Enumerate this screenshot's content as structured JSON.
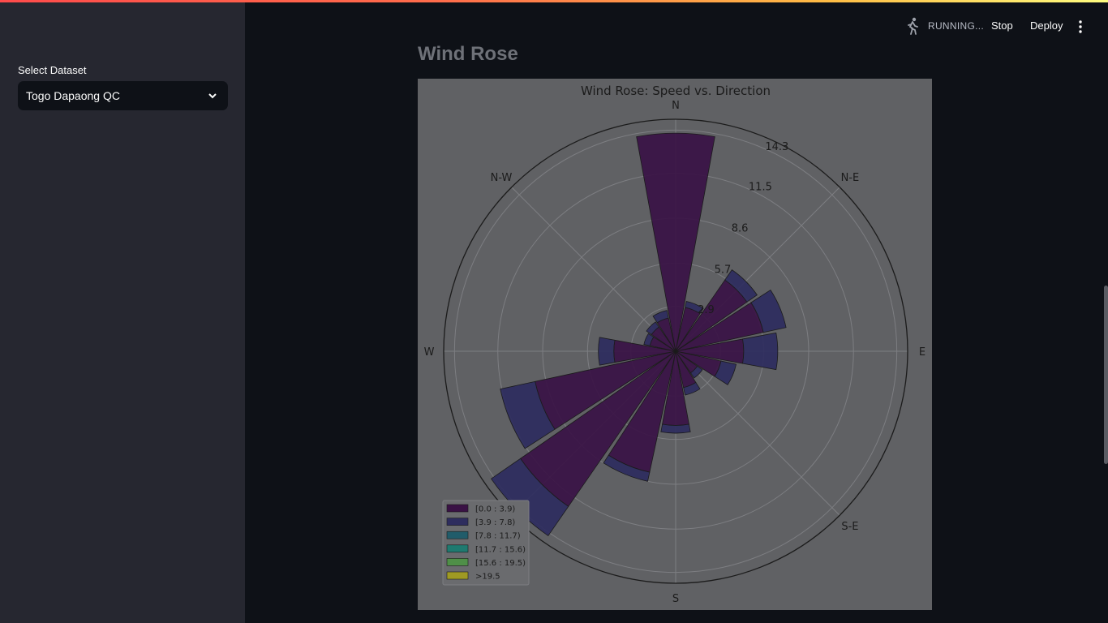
{
  "header": {
    "status_text": "RUNNING...",
    "stop_label": "Stop",
    "deploy_label": "Deploy",
    "running_icon": "running-man-icon",
    "menu_icon": "kebab-menu-icon"
  },
  "sidebar": {
    "select_label": "Select Dataset",
    "select_value": "Togo Dapaong QC"
  },
  "main": {
    "heading": "Wind Rose"
  },
  "colors": {
    "accent_gradient_start": "#ff4b4b",
    "accent_gradient_end": "#fffd80",
    "bin_0": "#3a1245",
    "bin_1": "#2e2d5e",
    "bin_2": "#215c6a",
    "bin_3": "#1f7a70",
    "bin_4": "#4f8f48",
    "bin_5": "#9f9a23"
  },
  "chart_data": {
    "type": "windrose",
    "title": "Wind Rose: Speed vs. Direction",
    "direction_labels": [
      "N",
      "N-E",
      "E",
      "S-E",
      "S",
      "W",
      "N-W"
    ],
    "radial_ticks": [
      "2.9",
      "5.7",
      "8.6",
      "11.5",
      "14.3"
    ],
    "radial_max": 15.0,
    "legend": [
      "[0.0 : 3.9)",
      "[3.9 : 7.8)",
      "[7.8 : 11.7)",
      "[11.7 : 15.6)",
      "[15.6 : 19.5)",
      ">19.5"
    ],
    "legend_location": "lower-left",
    "sectors": [
      {
        "direction": 0,
        "stack": [
          14.1,
          0.0
        ]
      },
      {
        "direction": 22.5,
        "stack": [
          2.9,
          0.4
        ]
      },
      {
        "direction": 45,
        "stack": [
          5.6,
          0.8
        ]
      },
      {
        "direction": 67.5,
        "stack": [
          5.8,
          1.5
        ]
      },
      {
        "direction": 90,
        "stack": [
          4.4,
          2.2
        ]
      },
      {
        "direction": 112.5,
        "stack": [
          3.0,
          1.0
        ]
      },
      {
        "direction": 135,
        "stack": [
          1.7,
          0.4
        ]
      },
      {
        "direction": 157.5,
        "stack": [
          2.4,
          0.5
        ]
      },
      {
        "direction": 180,
        "stack": [
          4.8,
          0.5
        ]
      },
      {
        "direction": 202.5,
        "stack": [
          8.0,
          0.6
        ]
      },
      {
        "direction": 225,
        "stack": [
          12.2,
          2.3
        ]
      },
      {
        "direction": 247.5,
        "stack": [
          9.3,
          2.3
        ]
      },
      {
        "direction": 270,
        "stack": [
          4.0,
          1.0
        ]
      },
      {
        "direction": 292.5,
        "stack": [
          1.7,
          0.4
        ]
      },
      {
        "direction": 315,
        "stack": [
          1.9,
          0.4
        ]
      },
      {
        "direction": 337.5,
        "stack": [
          2.2,
          0.5
        ]
      }
    ]
  }
}
